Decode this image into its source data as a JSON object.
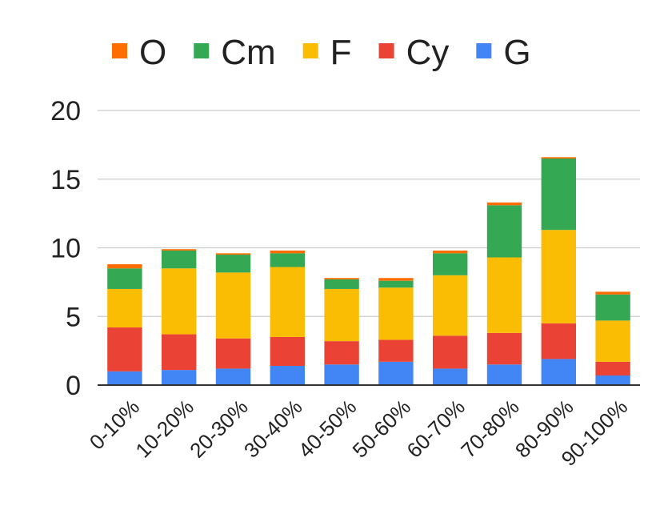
{
  "chart_data": {
    "type": "bar",
    "stacked": true,
    "title": "",
    "xlabel": "",
    "ylabel": "",
    "ylim": [
      0,
      20
    ],
    "yticks": [
      0,
      5,
      10,
      15,
      20
    ],
    "grid": true,
    "legend_position": "top",
    "categories": [
      "0-10%",
      "10-20%",
      "20-30%",
      "30-40%",
      "40-50%",
      "50-60%",
      "60-70%",
      "70-80%",
      "80-90%",
      "90-100%"
    ],
    "series": [
      {
        "name": "G",
        "color": "#4285f4",
        "values": [
          1.0,
          1.1,
          1.2,
          1.4,
          1.5,
          1.7,
          1.2,
          1.5,
          1.9,
          0.7
        ]
      },
      {
        "name": "Cy",
        "color": "#ea4335",
        "values": [
          3.2,
          2.6,
          2.2,
          2.1,
          1.7,
          1.6,
          2.4,
          2.3,
          2.6,
          1.0
        ]
      },
      {
        "name": "F",
        "color": "#fbbc04",
        "values": [
          2.8,
          4.8,
          4.8,
          5.1,
          3.8,
          3.8,
          4.4,
          5.5,
          6.8,
          3.0
        ]
      },
      {
        "name": "Cm",
        "color": "#34a853",
        "values": [
          1.5,
          1.3,
          1.3,
          1.0,
          0.7,
          0.5,
          1.6,
          3.8,
          5.2,
          1.9
        ]
      },
      {
        "name": "O",
        "color": "#ff6d01",
        "values": [
          0.3,
          0.1,
          0.1,
          0.2,
          0.1,
          0.2,
          0.2,
          0.2,
          0.1,
          0.2
        ]
      }
    ],
    "legend_order": [
      "O",
      "Cm",
      "F",
      "Cy",
      "G"
    ]
  }
}
